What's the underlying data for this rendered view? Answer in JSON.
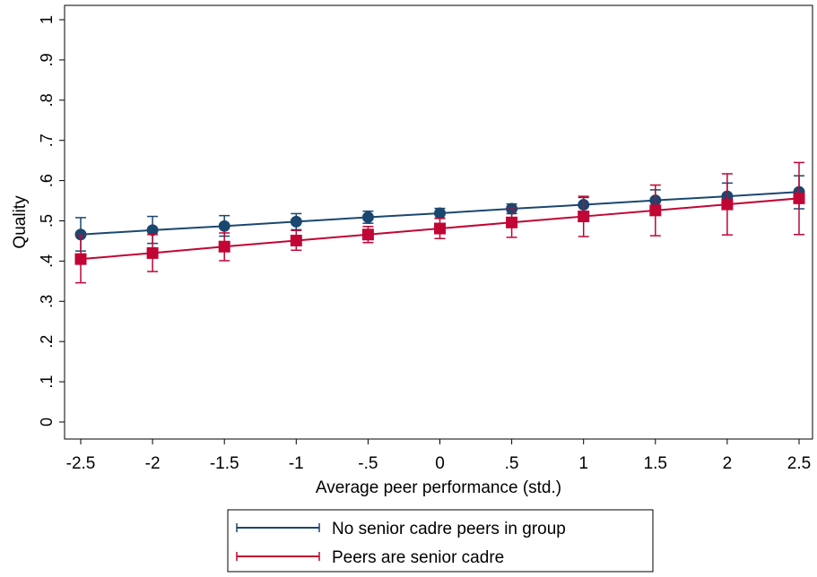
{
  "chart_data": {
    "type": "line",
    "title": "",
    "xlabel": "Average peer performance (std.)",
    "ylabel": "Quality",
    "xlim": [
      -2.5,
      2.5
    ],
    "ylim": [
      0,
      1
    ],
    "x_ticks": [
      "-2.5",
      "-2",
      "-1.5",
      "-1",
      "-.5",
      "0",
      ".5",
      "1",
      "1.5",
      "2",
      "2.5"
    ],
    "y_ticks": [
      "0",
      ".1",
      ".2",
      ".3",
      ".4",
      ".5",
      ".6",
      ".7",
      ".8",
      ".9",
      "1"
    ],
    "x": [
      -2.5,
      -2,
      -1.5,
      -1,
      -0.5,
      0,
      0.5,
      1,
      1.5,
      2,
      2.5
    ],
    "grid": false,
    "legend_position": "bottom",
    "series": [
      {
        "name": "No senior cadre peers in group",
        "color": "#1a476f",
        "marker": "circle",
        "values": [
          0.466,
          0.477,
          0.487,
          0.498,
          0.509,
          0.519,
          0.53,
          0.54,
          0.551,
          0.561,
          0.572
        ],
        "ci_low": [
          0.425,
          0.444,
          0.462,
          0.478,
          0.494,
          0.507,
          0.518,
          0.523,
          0.525,
          0.529,
          0.53
        ],
        "ci_high": [
          0.508,
          0.511,
          0.513,
          0.518,
          0.524,
          0.531,
          0.542,
          0.558,
          0.577,
          0.594,
          0.612
        ]
      },
      {
        "name": "Peers are senior cadre",
        "color": "#c10534",
        "marker": "square",
        "values": [
          0.405,
          0.42,
          0.436,
          0.451,
          0.466,
          0.481,
          0.496,
          0.511,
          0.526,
          0.541,
          0.556
        ],
        "ci_low": [
          0.346,
          0.374,
          0.401,
          0.427,
          0.446,
          0.456,
          0.459,
          0.461,
          0.463,
          0.465,
          0.466
        ],
        "ci_high": [
          0.464,
          0.466,
          0.47,
          0.476,
          0.486,
          0.506,
          0.533,
          0.561,
          0.589,
          0.617,
          0.645
        ]
      }
    ]
  }
}
